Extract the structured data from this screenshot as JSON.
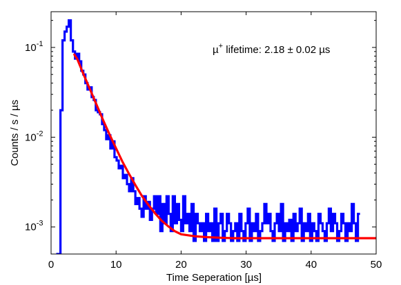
{
  "chart_data": {
    "type": "line",
    "xlabel": "Time Seperation [µs]",
    "ylabel": "Counts / s / µs",
    "xlim": [
      0,
      50
    ],
    "ylim": [
      0.0005,
      0.25
    ],
    "y_scale": "log",
    "x_ticks": [
      "0",
      "10",
      "20",
      "30",
      "40",
      "50"
    ],
    "y_ticks": [
      {
        "value": 0.1,
        "base": "10",
        "exp": "-1"
      },
      {
        "value": 0.01,
        "base": "10",
        "exp": "-2"
      },
      {
        "value": 0.001,
        "base": "10",
        "exp": "-3"
      }
    ],
    "annotation": {
      "mu": "µ",
      "sup": "+",
      "text": " lifetime: 2.18 ± 0.02 µs"
    },
    "grid": false,
    "colors": {
      "histogram": "#0000ff",
      "fit": "#ff0000",
      "axes": "#000000"
    },
    "series": [
      {
        "style": "step-histogram",
        "bin_width": 0.32,
        "x_start": 0.8,
        "values": [
          0.0005,
          0.0005,
          0.02,
          0.12,
          0.15,
          0.17,
          0.2,
          0.12,
          0.09,
          0.075,
          0.085,
          0.07,
          0.055,
          0.05,
          0.04,
          0.034,
          0.036,
          0.028,
          0.026,
          0.02,
          0.019,
          0.018,
          0.014,
          0.012,
          0.0095,
          0.0105,
          0.0075,
          0.009,
          0.006,
          0.0055,
          0.0045,
          0.0048,
          0.0035,
          0.0038,
          0.003,
          0.0025,
          0.0035,
          0.0025,
          0.0018,
          0.0021,
          0.0016,
          0.0013,
          0.0022,
          0.0016,
          0.0019,
          0.0012,
          0.0016,
          0.0022,
          0.0014,
          0.0022,
          0.0009,
          0.0018,
          0.0011,
          0.0022,
          0.0014,
          0.0009,
          0.0022,
          0.0011,
          0.0018,
          0.0012,
          0.0009,
          0.0022,
          0.0011,
          0.0014,
          0.0009,
          0.0018,
          0.0007,
          0.0014,
          0.0011,
          0.0009,
          0.0011,
          0.0007,
          0.0014,
          0.0009,
          0.0011,
          0.0007,
          0.0016,
          0.0007,
          0.0011,
          0.0014,
          0.0007,
          0.0009,
          0.0014,
          0.0011,
          0.0007,
          0.0009,
          0.0011,
          0.0007,
          0.0014,
          0.0009,
          0.0007,
          0.0011,
          0.0016,
          0.0007,
          0.0011,
          0.0009,
          0.0014,
          0.0007,
          0.0009,
          0.0011,
          0.0018,
          0.0011,
          0.0014,
          0.0009,
          0.0007,
          0.0011,
          0.0014,
          0.0009,
          0.0018,
          0.0007,
          0.0011,
          0.0009,
          0.0012,
          0.0007,
          0.0014,
          0.0009,
          0.0011,
          0.0016,
          0.0007,
          0.0011,
          0.0009,
          0.0014,
          0.0007,
          0.0011,
          0.0009,
          0.0007,
          0.0014,
          0.0011,
          0.0009,
          0.0007,
          0.0011,
          0.0016,
          0.0009,
          0.0014,
          0.0011,
          0.0007,
          0.0009,
          0.0014,
          0.0011,
          0.0007,
          0.0011,
          0.0009,
          0.0018,
          0.0011,
          0.0007,
          0.0014
        ]
      },
      {
        "style": "fit-curve",
        "x": [
          3.5,
          4,
          5,
          6,
          7,
          8,
          9,
          10,
          11,
          12,
          13,
          14,
          15,
          16,
          17,
          18,
          19,
          20,
          22,
          24,
          26,
          28,
          30,
          35,
          40,
          45,
          50
        ],
        "values": [
          0.085,
          0.075,
          0.05,
          0.034,
          0.023,
          0.0155,
          0.0107,
          0.0075,
          0.0053,
          0.0039,
          0.0029,
          0.0022,
          0.00175,
          0.00142,
          0.00118,
          0.00102,
          0.0009,
          0.00083,
          0.00079,
          0.00077,
          0.00076,
          0.00075,
          0.00075,
          0.00075,
          0.00075,
          0.00075,
          0.00075
        ]
      }
    ]
  }
}
